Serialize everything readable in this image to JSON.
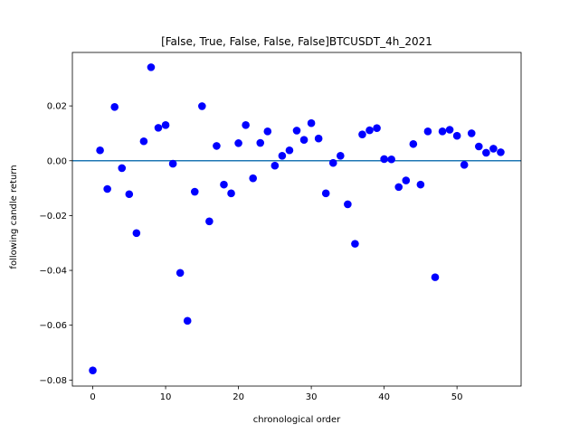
{
  "chart_data": {
    "type": "scatter",
    "title": "[False, True, False, False, False]BTCUSDT_4h_2021",
    "xlabel": "chronological order",
    "ylabel": "following candle return",
    "xlim": [
      -2.8,
      58.8
    ],
    "ylim": [
      -0.0822,
      0.0395
    ],
    "xticks": [
      0,
      10,
      20,
      30,
      40,
      50
    ],
    "xtick_labels": [
      "0",
      "10",
      "20",
      "30",
      "40",
      "50"
    ],
    "yticks": [
      -0.08,
      -0.06,
      -0.04,
      -0.02,
      0.0,
      0.02
    ],
    "ytick_labels": [
      "−0.08",
      "−0.06",
      "−0.04",
      "−0.02",
      "0.00",
      "0.02"
    ],
    "grid": false,
    "reference_line": {
      "y": 0.0,
      "color": "#1f77b4"
    },
    "marker_color": "#0000ff",
    "x": [
      0,
      1,
      2,
      3,
      4,
      5,
      6,
      7,
      8,
      9,
      10,
      11,
      12,
      13,
      14,
      15,
      16,
      17,
      18,
      19,
      20,
      21,
      22,
      23,
      24,
      25,
      26,
      27,
      28,
      29,
      30,
      31,
      32,
      33,
      34,
      35,
      36,
      37,
      38,
      39,
      40,
      41,
      42,
      43,
      44,
      45,
      46,
      47,
      48,
      49,
      50,
      51,
      52,
      53,
      54,
      55,
      56
    ],
    "y": [
      -0.0765,
      0.0038,
      -0.0103,
      0.0196,
      -0.0027,
      -0.0122,
      -0.0264,
      0.0071,
      0.0341,
      0.012,
      0.013,
      -0.0011,
      -0.0409,
      -0.0584,
      -0.0113,
      0.0199,
      -0.0221,
      0.0054,
      -0.0087,
      -0.0119,
      0.0064,
      0.013,
      -0.0064,
      0.0065,
      0.0107,
      -0.0018,
      0.0018,
      0.0038,
      0.011,
      0.0076,
      0.0137,
      0.0081,
      -0.0119,
      -0.0008,
      0.0018,
      -0.0159,
      -0.0303,
      0.0096,
      0.0111,
      0.0119,
      0.0006,
      0.0005,
      -0.0096,
      -0.0072,
      0.0061,
      -0.0087,
      0.0107,
      -0.0425,
      0.0107,
      0.0113,
      0.0091,
      -0.0015,
      0.01,
      0.0052,
      0.0029,
      0.0044,
      0.0031
    ]
  }
}
